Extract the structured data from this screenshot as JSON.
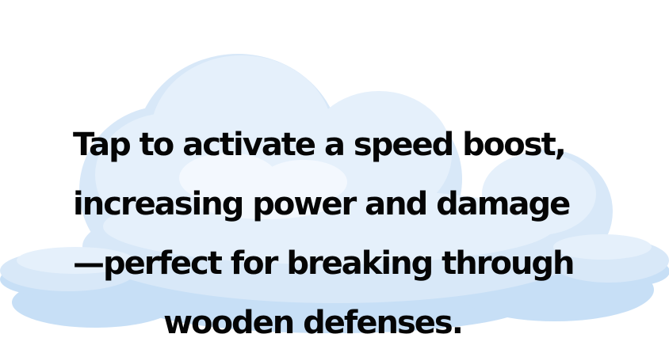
{
  "tooltip": {
    "lines": [
      "Tap to activate a speed boost,",
      "increasing power and damage",
      "—perfect for breaking through",
      "wooden defenses."
    ]
  },
  "colors": {
    "cloud_light": "#e5f0fb",
    "cloud_mid": "#d8e8f8",
    "cloud_shadow": "#c7dff6",
    "text": "#050505"
  },
  "icons": {
    "background": "cloud-icon"
  }
}
